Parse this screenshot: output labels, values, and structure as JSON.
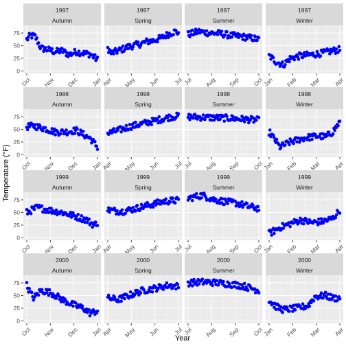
{
  "chart_data": {
    "type": "scatter",
    "xlabel": "Year",
    "ylabel": "Temperature (°F)",
    "ylim": [
      -5,
      90
    ],
    "yticks": [
      0,
      25,
      50,
      75
    ],
    "point_color": "#0000ff",
    "panel_background": "#ebebeb",
    "strip_background": "#d9d9d9",
    "grid": true,
    "legend": "none",
    "years": [
      "1997",
      "1998",
      "1999",
      "2000"
    ],
    "seasons": [
      "Autumn",
      "Spring",
      "Summer",
      "Winter"
    ],
    "season_xticks": {
      "Autumn": [
        "Oct",
        "Nov",
        "Dec",
        "Jan"
      ],
      "Spring": [
        "Apr",
        "May",
        "Jun",
        "Jul"
      ],
      "Summer": [
        "Jul",
        "Aug",
        "Sep",
        "Oct"
      ],
      "Winter": [
        "Jan",
        "Feb",
        "Mar",
        "Apr"
      ]
    },
    "panels": [
      {
        "year": "1997",
        "season": "Autumn",
        "trend": [
          [
            0,
            62
          ],
          [
            0.05,
            70
          ],
          [
            0.12,
            68
          ],
          [
            0.2,
            45
          ],
          [
            0.3,
            42
          ],
          [
            0.4,
            38
          ],
          [
            0.5,
            40
          ],
          [
            0.6,
            32
          ],
          [
            0.7,
            38
          ],
          [
            0.8,
            35
          ],
          [
            0.9,
            33
          ],
          [
            1,
            22
          ]
        ]
      },
      {
        "year": "1997",
        "season": "Spring",
        "trend": [
          [
            0,
            45
          ],
          [
            0.05,
            35
          ],
          [
            0.15,
            40
          ],
          [
            0.3,
            48
          ],
          [
            0.45,
            53
          ],
          [
            0.55,
            58
          ],
          [
            0.65,
            60
          ],
          [
            0.75,
            65
          ],
          [
            0.85,
            72
          ],
          [
            0.95,
            78
          ],
          [
            1,
            76
          ]
        ]
      },
      {
        "year": "1997",
        "season": "Summer",
        "trend": [
          [
            0,
            72
          ],
          [
            0.15,
            78
          ],
          [
            0.3,
            75
          ],
          [
            0.45,
            74
          ],
          [
            0.6,
            70
          ],
          [
            0.75,
            68
          ],
          [
            0.9,
            65
          ],
          [
            1,
            62
          ]
        ]
      },
      {
        "year": "1997",
        "season": "Winter",
        "trend": [
          [
            0,
            30
          ],
          [
            0.1,
            18
          ],
          [
            0.2,
            12
          ],
          [
            0.3,
            25
          ],
          [
            0.45,
            30
          ],
          [
            0.6,
            32
          ],
          [
            0.75,
            35
          ],
          [
            0.9,
            40
          ],
          [
            1,
            42
          ]
        ]
      },
      {
        "year": "1998",
        "season": "Autumn",
        "trend": [
          [
            0,
            55
          ],
          [
            0.1,
            57
          ],
          [
            0.25,
            52
          ],
          [
            0.4,
            45
          ],
          [
            0.55,
            45
          ],
          [
            0.7,
            48
          ],
          [
            0.8,
            40
          ],
          [
            0.9,
            32
          ],
          [
            1,
            15
          ]
        ]
      },
      {
        "year": "1998",
        "season": "Spring",
        "trend": [
          [
            0,
            42
          ],
          [
            0.15,
            48
          ],
          [
            0.3,
            55
          ],
          [
            0.45,
            60
          ],
          [
            0.6,
            65
          ],
          [
            0.75,
            70
          ],
          [
            0.9,
            75
          ],
          [
            1,
            76
          ]
        ]
      },
      {
        "year": "1998",
        "season": "Summer",
        "trend": [
          [
            0,
            75
          ],
          [
            0.2,
            74
          ],
          [
            0.4,
            73
          ],
          [
            0.6,
            72
          ],
          [
            0.8,
            70
          ],
          [
            1,
            68
          ]
        ]
      },
      {
        "year": "1998",
        "season": "Winter",
        "trend": [
          [
            0,
            45
          ],
          [
            0.08,
            30
          ],
          [
            0.15,
            15
          ],
          [
            0.3,
            25
          ],
          [
            0.5,
            33
          ],
          [
            0.7,
            37
          ],
          [
            0.8,
            35
          ],
          [
            0.9,
            45
          ],
          [
            1,
            65
          ]
        ]
      },
      {
        "year": "1999",
        "season": "Autumn",
        "trend": [
          [
            0,
            50
          ],
          [
            0.15,
            60
          ],
          [
            0.3,
            55
          ],
          [
            0.5,
            50
          ],
          [
            0.7,
            42
          ],
          [
            0.85,
            35
          ],
          [
            0.95,
            25
          ],
          [
            1,
            30
          ]
        ]
      },
      {
        "year": "1999",
        "season": "Spring",
        "trend": [
          [
            0,
            55
          ],
          [
            0.2,
            52
          ],
          [
            0.4,
            58
          ],
          [
            0.6,
            65
          ],
          [
            0.8,
            72
          ],
          [
            1,
            74
          ]
        ]
      },
      {
        "year": "1999",
        "season": "Summer",
        "trend": [
          [
            0,
            78
          ],
          [
            0.2,
            84
          ],
          [
            0.35,
            76
          ],
          [
            0.5,
            72
          ],
          [
            0.7,
            68
          ],
          [
            0.85,
            62
          ],
          [
            1,
            58
          ]
        ]
      },
      {
        "year": "1999",
        "season": "Winter",
        "trend": [
          [
            0,
            8
          ],
          [
            0.15,
            20
          ],
          [
            0.3,
            28
          ],
          [
            0.45,
            35
          ],
          [
            0.6,
            30
          ],
          [
            0.75,
            32
          ],
          [
            0.9,
            38
          ],
          [
            1,
            55
          ]
        ]
      },
      {
        "year": "2000",
        "season": "Autumn",
        "trend": [
          [
            0,
            70
          ],
          [
            0.05,
            55
          ],
          [
            0.1,
            45
          ],
          [
            0.2,
            60
          ],
          [
            0.35,
            55
          ],
          [
            0.5,
            42
          ],
          [
            0.65,
            32
          ],
          [
            0.8,
            25
          ],
          [
            0.9,
            15
          ],
          [
            1,
            20
          ]
        ]
      },
      {
        "year": "2000",
        "season": "Spring",
        "trend": [
          [
            0,
            45
          ],
          [
            0.15,
            42
          ],
          [
            0.3,
            50
          ],
          [
            0.5,
            60
          ],
          [
            0.7,
            65
          ],
          [
            0.85,
            70
          ],
          [
            1,
            68
          ]
        ]
      },
      {
        "year": "2000",
        "season": "Summer",
        "trend": [
          [
            0,
            75
          ],
          [
            0.25,
            77
          ],
          [
            0.5,
            74
          ],
          [
            0.75,
            70
          ],
          [
            0.9,
            64
          ],
          [
            1,
            60
          ]
        ]
      },
      {
        "year": "2000",
        "season": "Winter",
        "trend": [
          [
            0,
            40
          ],
          [
            0.1,
            28
          ],
          [
            0.2,
            22
          ],
          [
            0.4,
            25
          ],
          [
            0.55,
            30
          ],
          [
            0.65,
            48
          ],
          [
            0.8,
            50
          ],
          [
            0.9,
            45
          ],
          [
            1,
            45
          ]
        ]
      }
    ]
  }
}
